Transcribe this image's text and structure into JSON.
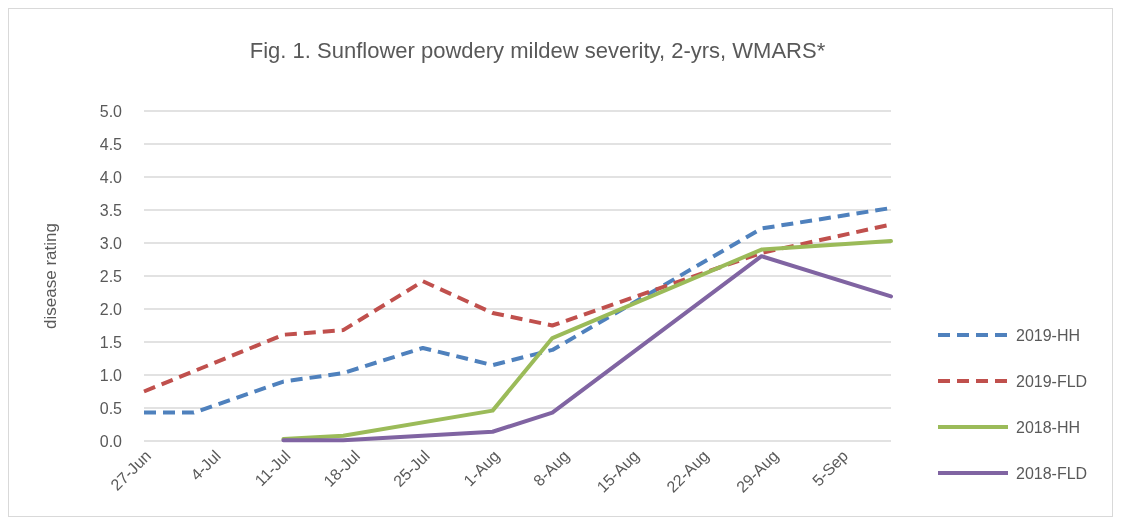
{
  "chart_data": {
    "type": "line",
    "title": "Fig. 1. Sunflower powdery mildew severity, 2-yrs, WMARS*",
    "ylabel": "disease rating",
    "xlim": [
      "--06-27",
      "--09-10"
    ],
    "xticks": [
      {
        "value": "--06-27",
        "label": "27-Jun"
      },
      {
        "value": "--07-04",
        "label": "4-Jul"
      },
      {
        "value": "--07-11",
        "label": "11-Jul"
      },
      {
        "value": "--07-18",
        "label": "18-Jul"
      },
      {
        "value": "--07-25",
        "label": "25-Jul"
      },
      {
        "value": "--08-01",
        "label": "1-Aug"
      },
      {
        "value": "--08-08",
        "label": "8-Aug"
      },
      {
        "value": "--08-15",
        "label": "15-Aug"
      },
      {
        "value": "--08-22",
        "label": "22-Aug"
      },
      {
        "value": "--08-29",
        "label": "29-Aug"
      },
      {
        "value": "--09-05",
        "label": "5-Sep"
      }
    ],
    "ylim": [
      0,
      5
    ],
    "yticks": [
      {
        "value": 0,
        "label": "0.0"
      },
      {
        "value": 0.5,
        "label": "0.5"
      },
      {
        "value": 1,
        "label": "1.0"
      },
      {
        "value": 1.5,
        "label": "1.5"
      },
      {
        "value": 2,
        "label": "2.0"
      },
      {
        "value": 2.5,
        "label": "2.5"
      },
      {
        "value": 3,
        "label": "3.0"
      },
      {
        "value": 3.5,
        "label": "3.5"
      },
      {
        "value": 4,
        "label": "4.0"
      },
      {
        "value": 4.5,
        "label": "4.5"
      },
      {
        "value": 5,
        "label": "5.0"
      }
    ],
    "grid": "y",
    "legend": "right",
    "marker": "none",
    "series": [
      {
        "name": "2019-HH",
        "color": "#4f81bd",
        "line_style": "dashed",
        "x": [
          "--06-27",
          "--07-02",
          "--07-11",
          "--07-17",
          "--07-25",
          "--08-01",
          "--08-07",
          "--08-28",
          "--09-10"
        ],
        "values": [
          0.43,
          0.43,
          0.9,
          1.03,
          1.41,
          1.15,
          1.38,
          3.22,
          3.53
        ]
      },
      {
        "name": "2019-FLD",
        "color": "#c0504d",
        "line_style": "dashed",
        "x": [
          "--06-27",
          "--07-11",
          "--07-17",
          "--07-25",
          "--08-01",
          "--08-07",
          "--08-28",
          "--09-10"
        ],
        "values": [
          0.75,
          1.61,
          1.68,
          2.42,
          1.94,
          1.75,
          2.85,
          3.28
        ]
      },
      {
        "name": "2018-HH",
        "color": "#9bbb59",
        "line_style": "solid",
        "x": [
          "--07-11",
          "--07-17",
          "--08-01",
          "--08-07",
          "--08-28",
          "--09-10"
        ],
        "values": [
          0.03,
          0.08,
          0.46,
          1.56,
          2.9,
          3.03
        ]
      },
      {
        "name": "2018-FLD",
        "color": "#8064a2",
        "line_style": "solid",
        "x": [
          "--07-11",
          "--07-17",
          "--08-01",
          "--08-07",
          "--08-28",
          "--09-10"
        ],
        "values": [
          0.01,
          0.01,
          0.14,
          0.43,
          2.8,
          2.19
        ]
      }
    ]
  }
}
